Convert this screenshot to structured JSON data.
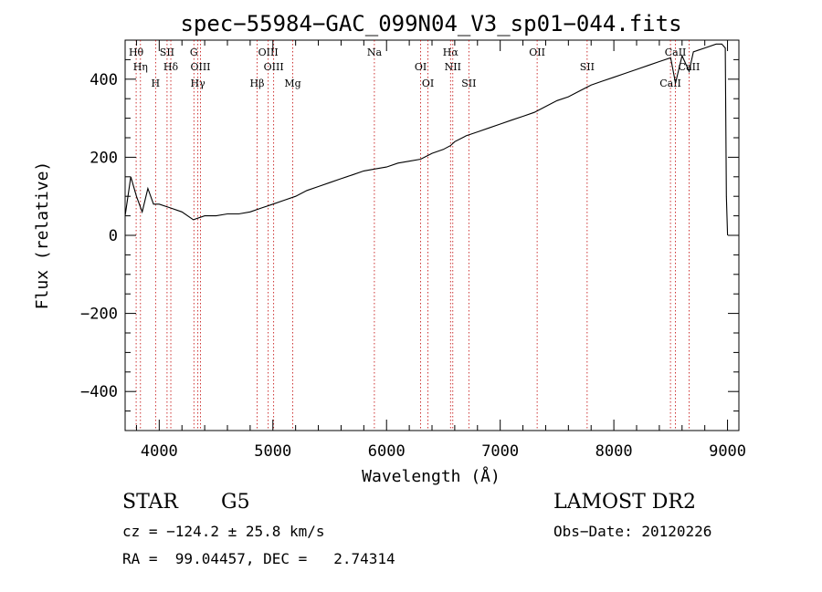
{
  "chart_data": {
    "type": "line",
    "title": "spec−55984−GAC_099N04_V3_sp01−044.fits",
    "xlabel": "Wavelength (Å)",
    "ylabel": "Flux (relative)",
    "xlim": [
      3700,
      9100
    ],
    "ylim": [
      -500,
      500
    ],
    "xticks": [
      4000,
      5000,
      6000,
      7000,
      8000,
      9000
    ],
    "yticks": [
      -400,
      -200,
      0,
      200,
      400
    ],
    "xtick_labels": [
      "4000",
      "5000",
      "6000",
      "7000",
      "8000",
      "9000"
    ],
    "ytick_labels": [
      "−400",
      "−200",
      "0",
      "200",
      "400"
    ],
    "grid": false,
    "series": [
      {
        "x": [
          3700,
          3750,
          3800,
          3850,
          3900,
          3950,
          4000,
          4100,
          4200,
          4300,
          4400,
          4500,
          4600,
          4700,
          4800,
          4900,
          5000,
          5100,
          5200,
          5300,
          5400,
          5500,
          5600,
          5700,
          5800,
          5900,
          6000,
          6100,
          6200,
          6300,
          6400,
          6500,
          6563,
          6600,
          6700,
          6800,
          6900,
          7000,
          7100,
          7200,
          7300,
          7400,
          7500,
          7600,
          7700,
          7800,
          7900,
          8000,
          8100,
          8200,
          8300,
          8400,
          8500,
          8542,
          8600,
          8662,
          8700,
          8800,
          8900,
          8950,
          8980,
          8990,
          9000
        ],
        "y": [
          50,
          150,
          100,
          60,
          120,
          80,
          80,
          70,
          60,
          40,
          50,
          50,
          55,
          55,
          60,
          70,
          80,
          90,
          100,
          115,
          125,
          135,
          145,
          155,
          165,
          170,
          175,
          185,
          190,
          195,
          210,
          220,
          230,
          240,
          255,
          265,
          275,
          285,
          295,
          305,
          315,
          330,
          345,
          355,
          370,
          385,
          395,
          405,
          415,
          425,
          435,
          445,
          455,
          390,
          460,
          420,
          470,
          480,
          490,
          490,
          480,
          100,
          0
        ]
      }
    ],
    "line_markers": [
      {
        "label": "Hθ",
        "x": 3797
      },
      {
        "label": "Hη",
        "x": 3835
      },
      {
        "label": "H",
        "x": 3968
      },
      {
        "label": "SII",
        "x": 4069
      },
      {
        "label": "Hδ",
        "x": 4102
      },
      {
        "label": "Hγ",
        "x": 4340
      },
      {
        "label": "G",
        "x": 4305
      },
      {
        "label": "OIII",
        "x": 4363
      },
      {
        "label": "Hβ",
        "x": 4861
      },
      {
        "label": "OIII",
        "x": 4959
      },
      {
        "label": "OIII",
        "x": 5007
      },
      {
        "label": "Mg",
        "x": 5175
      },
      {
        "label": "Na",
        "x": 5893
      },
      {
        "label": "OI",
        "x": 6300
      },
      {
        "label": "OI",
        "x": 6364
      },
      {
        "label": "Hα",
        "x": 6563
      },
      {
        "label": "NII",
        "x": 6583
      },
      {
        "label": "SII",
        "x": 6724
      },
      {
        "label": "OII",
        "x": 7325
      },
      {
        "label": "SII",
        "x": 7765
      },
      {
        "label": "CaII",
        "x": 8498
      },
      {
        "label": "CaII",
        "x": 8542
      },
      {
        "label": "CaII",
        "x": 8662
      }
    ]
  },
  "info": {
    "object_class": "STAR",
    "subclass": "G5",
    "survey": "LAMOST DR2",
    "cz": "cz = −124.2 ± 25.8 km/s",
    "obs_date": "Obs−Date: 20120226",
    "radec": "RA =  99.04457, DEC =   2.74314"
  }
}
